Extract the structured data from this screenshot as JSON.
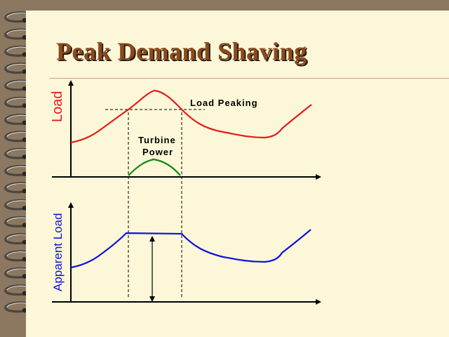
{
  "slide": {
    "title": "Peak Demand Shaving",
    "colors": {
      "background": "#fbf7d8",
      "frame": "#8c7760",
      "title": "#8a4a1c",
      "rule": "#c9a27a",
      "load_curve": "#e41a1a",
      "turbine_curve": "#118811",
      "apparent_curve": "#1010dd"
    }
  },
  "top_plot": {
    "y_axis_label": "Load",
    "annotation_peaking": "Load Peaking",
    "annotation_turbine_line1": "Turbine",
    "annotation_turbine_line2": "Power"
  },
  "bottom_plot": {
    "y_axis_label": "Apparent Load"
  },
  "binding": {
    "icon": "spiral-binding-icon",
    "rings": 18
  }
}
